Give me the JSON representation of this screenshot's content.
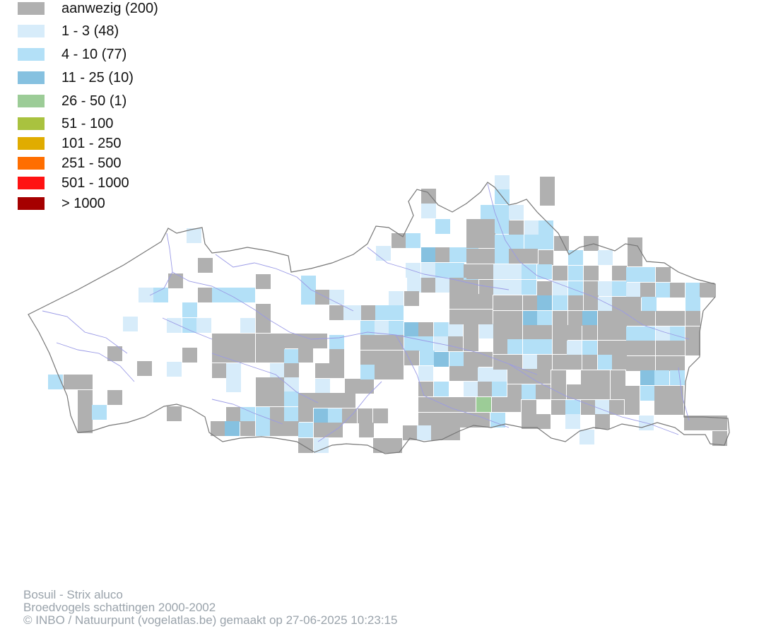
{
  "legend": {
    "items": [
      {
        "label": "aanwezig (200)",
        "color": "#b0b0b0"
      },
      {
        "label": "1 - 3 (48)",
        "color": "#d7ecfa"
      },
      {
        "label": "4 - 10 (77)",
        "color": "#b3e0f7"
      },
      {
        "label": "11 - 25 (10)",
        "color": "#86c1e0"
      },
      {
        "label": "26 - 50 (1)",
        "color": "#9ccc97"
      },
      {
        "label": "51 - 100",
        "color": "#a9c23f"
      },
      {
        "label": "101 - 250",
        "color": "#e0ac00"
      },
      {
        "label": "251 - 500",
        "color": "#ff6e00"
      },
      {
        "label": "501 - 1000",
        "color": "#ff1212"
      },
      {
        "label": "> 1000",
        "color": "#a50000"
      }
    ]
  },
  "map": {
    "region_outline_color": "#777777",
    "river_color": "#9a9ae6"
  },
  "credits": {
    "species": "Bosuil - Strix aluco",
    "dataset": "Broedvogels schattingen 2000-2002",
    "copyright": "© INBO / Natuurpunt (vogelatlas.be) gemaakt op 27-06-2025 10:23:15"
  }
}
